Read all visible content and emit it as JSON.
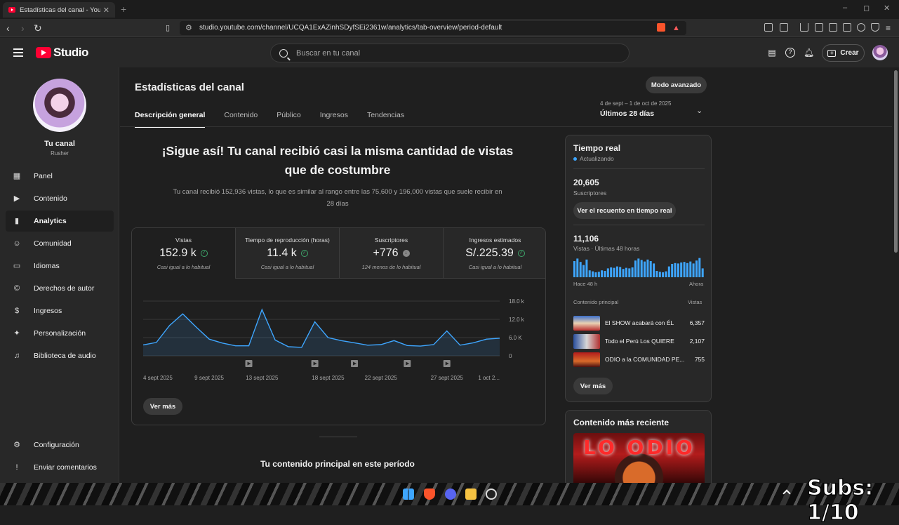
{
  "browser": {
    "tab_title": "Estadísticas del canal - YouTube",
    "tab_close": "✕",
    "new_tab": "+",
    "url": "studio.youtube.com/channel/UCQA1ExAZinhSDyfSEi2361w/analytics/tab-overview/period-default"
  },
  "header": {
    "logo_text": "Studio",
    "search_placeholder": "Buscar en tu canal",
    "create_label": "Crear"
  },
  "sidebar": {
    "channel_name": "Tu canal",
    "channel_handle": "Rusher",
    "items": [
      {
        "label": "Panel",
        "icon": "dashboard-icon"
      },
      {
        "label": "Contenido",
        "icon": "content-icon"
      },
      {
        "label": "Analytics",
        "icon": "analytics-icon",
        "active": true
      },
      {
        "label": "Comunidad",
        "icon": "community-icon"
      },
      {
        "label": "Idiomas",
        "icon": "subtitles-icon"
      },
      {
        "label": "Derechos de autor",
        "icon": "copyright-icon"
      },
      {
        "label": "Ingresos",
        "icon": "dollar-icon"
      },
      {
        "label": "Personalización",
        "icon": "magic-wand-icon"
      },
      {
        "label": "Biblioteca de audio",
        "icon": "audio-library-icon"
      }
    ],
    "bottom_items": [
      {
        "label": "Configuración",
        "icon": "gear-icon"
      },
      {
        "label": "Enviar comentarios",
        "icon": "feedback-icon"
      }
    ]
  },
  "main": {
    "title": "Estadísticas del canal",
    "advanced_button": "Modo avanzado",
    "tabs": [
      "Descripción general",
      "Contenido",
      "Público",
      "Ingresos",
      "Tendencias"
    ],
    "period_range": "4 de sept – 1 de oct de 2025",
    "period_label": "Últimos 28 días",
    "headline_1": "¡Sigue así! Tu canal recibió casi la misma cantidad de vistas",
    "headline_2": "que de costumbre",
    "subline_1": "Tu canal recibió 152,936 vistas, lo que es similar al rango entre las 75,600 y 196,000 vistas que suele recibir en",
    "subline_2": "28 días",
    "metrics": [
      {
        "label": "Vistas",
        "value": "152.9 k",
        "sub": "Casi igual a lo habitual"
      },
      {
        "label": "Tiempo de reproducción (horas)",
        "value": "11.4 k",
        "sub": "Casi igual a lo habitual"
      },
      {
        "label": "Suscriptores",
        "value": "+776",
        "sub": "124 menos de lo habitual"
      },
      {
        "label": "Ingresos estimados",
        "value": "S/.225.39",
        "sub": "Casi igual a lo habitual"
      }
    ],
    "see_more": "Ver más",
    "top_content_title": "Tu contenido principal en este período"
  },
  "chart_data": {
    "type": "area",
    "x_tick_labels": [
      "4 sept 2025",
      "9 sept 2025",
      "13 sept 2025",
      "18 sept 2025",
      "22 sept 2025",
      "27 sept 2025",
      "1 oct 2..."
    ],
    "y_tick_labels": [
      "18.0 k",
      "12.0 k",
      "6.0 K",
      "0"
    ],
    "ylim": [
      0,
      18000
    ],
    "series": [
      {
        "values": [
          3600,
          4400,
          10000,
          13800,
          9500,
          5500,
          4200,
          3300,
          3300,
          15200,
          5200,
          3000,
          2800,
          11200,
          6000,
          5000,
          4300,
          3500,
          3700,
          5000,
          3400,
          3200,
          3700,
          8200,
          3500,
          4300,
          5500,
          5800
        ]
      }
    ],
    "marker_days": [
      8,
      13,
      16,
      20,
      23
    ],
    "color": "#3ea6ff"
  },
  "realtime": {
    "title": "Tiempo real",
    "status": "Actualizando",
    "subscribers": "20,605",
    "subscribers_label": "Suscriptores",
    "realtime_button": "Ver el recuento en tiempo real",
    "views": "11,106",
    "views_label": "Vistas · Últimas 48 horas",
    "bars_label_left": "Hace 48 h",
    "bars_label_right": "Ahora",
    "bars": [
      0.82,
      0.95,
      0.78,
      0.62,
      0.9,
      0.35,
      0.3,
      0.25,
      0.28,
      0.35,
      0.32,
      0.45,
      0.5,
      0.48,
      0.55,
      0.52,
      0.42,
      0.48,
      0.45,
      0.5,
      0.85,
      0.95,
      0.88,
      0.8,
      0.9,
      0.82,
      0.7,
      0.32,
      0.28,
      0.25,
      0.3,
      0.55,
      0.68,
      0.72,
      0.7,
      0.75,
      0.78,
      0.72,
      0.8,
      0.7,
      0.85,
      0.98,
      0.45
    ],
    "table_head_left": "Contenido principal",
    "table_head_right": "Vistas",
    "rows": [
      {
        "title": "El SHOW acabará con ÉL",
        "views": "6,357"
      },
      {
        "title": "Todo el Perú Los QUIERE",
        "views": "2,107"
      },
      {
        "title": "ODIO a la COMUNIDAD PE...",
        "views": "755"
      }
    ],
    "see_more": "Ver más"
  },
  "recent": {
    "title": "Contenido más reciente",
    "thumb_text": "LO ODIO"
  },
  "overlay": {
    "subs_text": "Subs: 1/10"
  }
}
